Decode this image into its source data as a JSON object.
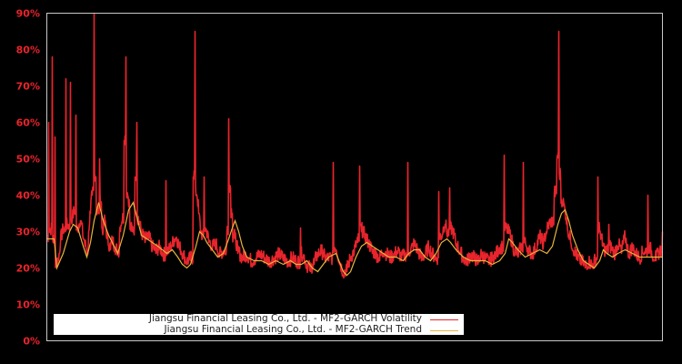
{
  "chart_data": {
    "type": "line",
    "title": "",
    "xlabel": "",
    "ylabel": "",
    "ylim": [
      0,
      90
    ],
    "yticks": [
      "0%",
      "10%",
      "20%",
      "30%",
      "40%",
      "50%",
      "60%",
      "70%",
      "80%",
      "90%"
    ],
    "grid": false,
    "legend_position": "lower-left",
    "x_note": "x is horizontal position index 0-677 across plot width (no x-axis labels shown)",
    "series": [
      {
        "name": "Jiangsu Financial Leasing Co., Ltd. - MF2-GARCH Volatility",
        "color": "#e8242c",
        "points": [
          [
            0,
            28
          ],
          [
            2,
            60
          ],
          [
            4,
            30
          ],
          [
            6,
            78
          ],
          [
            8,
            27
          ],
          [
            9,
            56
          ],
          [
            11,
            21
          ],
          [
            13,
            22
          ],
          [
            15,
            27
          ],
          [
            18,
            30
          ],
          [
            21,
            72
          ],
          [
            23,
            31
          ],
          [
            26,
            71
          ],
          [
            28,
            33
          ],
          [
            30,
            35
          ],
          [
            32,
            62
          ],
          [
            34,
            30
          ],
          [
            37,
            33
          ],
          [
            40,
            28
          ],
          [
            42,
            26
          ],
          [
            44,
            24
          ],
          [
            46,
            30
          ],
          [
            48,
            35
          ],
          [
            50,
            40
          ],
          [
            52,
            90
          ],
          [
            54,
            45
          ],
          [
            56,
            35
          ],
          [
            58,
            50
          ],
          [
            60,
            38
          ],
          [
            62,
            30
          ],
          [
            64,
            33
          ],
          [
            66,
            28
          ],
          [
            68,
            26
          ],
          [
            70,
            25
          ],
          [
            72,
            27
          ],
          [
            75,
            25
          ],
          [
            78,
            24
          ],
          [
            80,
            30
          ],
          [
            83,
            33
          ],
          [
            85,
            55
          ],
          [
            87,
            78
          ],
          [
            89,
            40
          ],
          [
            91,
            36
          ],
          [
            94,
            30
          ],
          [
            97,
            45
          ],
          [
            99,
            60
          ],
          [
            101,
            33
          ],
          [
            104,
            29
          ],
          [
            108,
            27
          ],
          [
            112,
            28
          ],
          [
            116,
            25
          ],
          [
            120,
            24
          ],
          [
            124,
            25
          ],
          [
            128,
            23
          ],
          [
            131,
            44
          ],
          [
            134,
            24
          ],
          [
            138,
            26
          ],
          [
            142,
            28
          ],
          [
            146,
            25
          ],
          [
            150,
            23
          ],
          [
            154,
            21
          ],
          [
            158,
            22
          ],
          [
            161,
            45
          ],
          [
            163,
            85
          ],
          [
            165,
            40
          ],
          [
            167,
            35
          ],
          [
            169,
            30
          ],
          [
            171,
            28
          ],
          [
            173,
            45
          ],
          [
            175,
            30
          ],
          [
            178,
            27
          ],
          [
            182,
            25
          ],
          [
            186,
            26
          ],
          [
            190,
            23
          ],
          [
            194,
            24
          ],
          [
            198,
            30
          ],
          [
            200,
            61
          ],
          [
            202,
            42
          ],
          [
            204,
            35
          ],
          [
            207,
            28
          ],
          [
            210,
            24
          ],
          [
            215,
            22
          ],
          [
            220,
            23
          ],
          [
            225,
            21
          ],
          [
            230,
            22
          ],
          [
            235,
            23
          ],
          [
            240,
            22
          ],
          [
            245,
            21
          ],
          [
            250,
            22
          ],
          [
            255,
            23
          ],
          [
            260,
            22
          ],
          [
            265,
            21
          ],
          [
            270,
            22
          ],
          [
            275,
            21
          ],
          [
            279,
            31
          ],
          [
            282,
            23
          ],
          [
            286,
            20
          ],
          [
            290,
            19
          ],
          [
            294,
            21
          ],
          [
            298,
            23
          ],
          [
            302,
            24
          ],
          [
            306,
            22
          ],
          [
            310,
            22
          ],
          [
            315,
            49
          ],
          [
            318,
            25
          ],
          [
            322,
            21
          ],
          [
            326,
            18
          ],
          [
            330,
            19
          ],
          [
            334,
            22
          ],
          [
            338,
            24
          ],
          [
            342,
            27
          ],
          [
            344,
            48
          ],
          [
            346,
            30
          ],
          [
            350,
            28
          ],
          [
            354,
            26
          ],
          [
            358,
            24
          ],
          [
            362,
            23
          ],
          [
            366,
            22
          ],
          [
            370,
            24
          ],
          [
            374,
            23
          ],
          [
            378,
            22
          ],
          [
            382,
            23
          ],
          [
            386,
            24
          ],
          [
            390,
            22
          ],
          [
            394,
            23
          ],
          [
            397,
            49
          ],
          [
            400,
            24
          ],
          [
            404,
            26
          ],
          [
            408,
            24
          ],
          [
            412,
            22
          ],
          [
            416,
            23
          ],
          [
            420,
            25
          ],
          [
            424,
            23
          ],
          [
            428,
            22
          ],
          [
            431,
            41
          ],
          [
            434,
            28
          ],
          [
            438,
            32
          ],
          [
            440,
            29
          ],
          [
            443,
            42
          ],
          [
            446,
            30
          ],
          [
            450,
            26
          ],
          [
            454,
            24
          ],
          [
            458,
            22
          ],
          [
            462,
            21
          ],
          [
            466,
            23
          ],
          [
            470,
            22
          ],
          [
            474,
            21
          ],
          [
            478,
            23
          ],
          [
            482,
            22
          ],
          [
            486,
            21
          ],
          [
            490,
            22
          ],
          [
            494,
            23
          ],
          [
            498,
            25
          ],
          [
            503,
            51
          ],
          [
            506,
            30
          ],
          [
            510,
            28
          ],
          [
            514,
            24
          ],
          [
            518,
            23
          ],
          [
            522,
            25
          ],
          [
            524,
            49
          ],
          [
            527,
            26
          ],
          [
            530,
            24
          ],
          [
            534,
            23
          ],
          [
            538,
            25
          ],
          [
            542,
            28
          ],
          [
            546,
            26
          ],
          [
            550,
            30
          ],
          [
            554,
            32
          ],
          [
            558,
            40
          ],
          [
            561,
            50
          ],
          [
            563,
            85
          ],
          [
            565,
            45
          ],
          [
            567,
            38
          ],
          [
            570,
            35
          ],
          [
            573,
            30
          ],
          [
            576,
            27
          ],
          [
            580,
            24
          ],
          [
            584,
            22
          ],
          [
            588,
            21
          ],
          [
            592,
            20
          ],
          [
            596,
            21
          ],
          [
            600,
            20
          ],
          [
            604,
            22
          ],
          [
            606,
            45
          ],
          [
            608,
            30
          ],
          [
            611,
            26
          ],
          [
            614,
            24
          ],
          [
            618,
            32
          ],
          [
            621,
            25
          ],
          [
            624,
            23
          ],
          [
            628,
            26
          ],
          [
            632,
            24
          ],
          [
            636,
            28
          ],
          [
            640,
            23
          ],
          [
            644,
            25
          ],
          [
            648,
            23
          ],
          [
            652,
            22
          ],
          [
            656,
            24
          ],
          [
            661,
            40
          ],
          [
            663,
            25
          ],
          [
            666,
            23
          ],
          [
            670,
            22
          ],
          [
            674,
            24
          ],
          [
            677,
            30
          ]
        ]
      },
      {
        "name": "Jiangsu Financial Leasing Co., Ltd. - MF2-GARCH Trend",
        "color": "#e8b43c",
        "points": [
          [
            0,
            28
          ],
          [
            8,
            28
          ],
          [
            11,
            20
          ],
          [
            18,
            24
          ],
          [
            25,
            30
          ],
          [
            29,
            32
          ],
          [
            34,
            31
          ],
          [
            40,
            26
          ],
          [
            44,
            23
          ],
          [
            48,
            27
          ],
          [
            52,
            33
          ],
          [
            57,
            38
          ],
          [
            62,
            33
          ],
          [
            68,
            29
          ],
          [
            74,
            26
          ],
          [
            78,
            24
          ],
          [
            84,
            29
          ],
          [
            90,
            36
          ],
          [
            95,
            38
          ],
          [
            100,
            33
          ],
          [
            104,
            29
          ],
          [
            110,
            28
          ],
          [
            116,
            27
          ],
          [
            122,
            26
          ],
          [
            127,
            25
          ],
          [
            132,
            24
          ],
          [
            138,
            25
          ],
          [
            144,
            23
          ],
          [
            149,
            21
          ],
          [
            154,
            20
          ],
          [
            158,
            21
          ],
          [
            164,
            26
          ],
          [
            168,
            30
          ],
          [
            172,
            29
          ],
          [
            176,
            27
          ],
          [
            182,
            25
          ],
          [
            188,
            23
          ],
          [
            194,
            24
          ],
          [
            200,
            28
          ],
          [
            204,
            31
          ],
          [
            207,
            33
          ],
          [
            211,
            30
          ],
          [
            215,
            26
          ],
          [
            220,
            23
          ],
          [
            228,
            22
          ],
          [
            236,
            22
          ],
          [
            244,
            21
          ],
          [
            252,
            22
          ],
          [
            260,
            21
          ],
          [
            268,
            22
          ],
          [
            274,
            21
          ],
          [
            280,
            21
          ],
          [
            286,
            22
          ],
          [
            292,
            20
          ],
          [
            298,
            19
          ],
          [
            304,
            21
          ],
          [
            310,
            23
          ],
          [
            318,
            24
          ],
          [
            326,
            19
          ],
          [
            330,
            18
          ],
          [
            334,
            19
          ],
          [
            340,
            23
          ],
          [
            346,
            26
          ],
          [
            352,
            27
          ],
          [
            358,
            26
          ],
          [
            364,
            25
          ],
          [
            370,
            24
          ],
          [
            376,
            23
          ],
          [
            384,
            23
          ],
          [
            392,
            22
          ],
          [
            398,
            24
          ],
          [
            404,
            25
          ],
          [
            410,
            25
          ],
          [
            416,
            23
          ],
          [
            422,
            22
          ],
          [
            428,
            24
          ],
          [
            434,
            27
          ],
          [
            440,
            28
          ],
          [
            444,
            27
          ],
          [
            450,
            25
          ],
          [
            458,
            23
          ],
          [
            466,
            22
          ],
          [
            474,
            22
          ],
          [
            482,
            22
          ],
          [
            490,
            21
          ],
          [
            498,
            22
          ],
          [
            504,
            24
          ],
          [
            508,
            28
          ],
          [
            512,
            27
          ],
          [
            518,
            25
          ],
          [
            526,
            23
          ],
          [
            534,
            24
          ],
          [
            542,
            25
          ],
          [
            550,
            24
          ],
          [
            556,
            26
          ],
          [
            562,
            32
          ],
          [
            566,
            35
          ],
          [
            570,
            36
          ],
          [
            574,
            33
          ],
          [
            578,
            29
          ],
          [
            584,
            25
          ],
          [
            590,
            22
          ],
          [
            596,
            21
          ],
          [
            602,
            20
          ],
          [
            608,
            22
          ],
          [
            612,
            25
          ],
          [
            616,
            24
          ],
          [
            622,
            23
          ],
          [
            628,
            24
          ],
          [
            636,
            25
          ],
          [
            644,
            24
          ],
          [
            652,
            23
          ],
          [
            660,
            23
          ],
          [
            668,
            23
          ],
          [
            677,
            23
          ]
        ]
      }
    ]
  },
  "legend": {
    "items": [
      {
        "label": "Jiangsu Financial Leasing Co., Ltd. - MF2-GARCH Volatility",
        "color": "#e8242c"
      },
      {
        "label": "Jiangsu Financial Leasing Co., Ltd. - MF2-GARCH Trend",
        "color": "#e8b43c"
      }
    ]
  },
  "colors": {
    "background": "#000000",
    "axis": "#c8c8c8",
    "tick_label": "#e8242c"
  }
}
